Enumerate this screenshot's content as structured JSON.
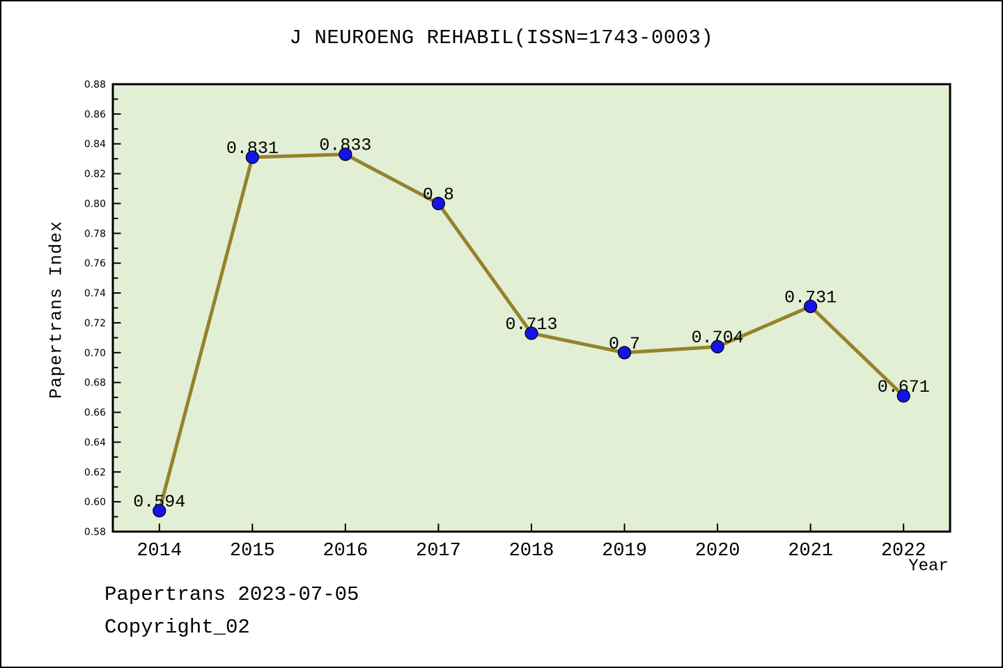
{
  "title": "J NEUROENG REHABIL(ISSN=1743-0003)",
  "footer": {
    "credit": "Papertrans 2023-07-05",
    "copyright": "Copyright_02"
  },
  "chart_data": {
    "type": "line",
    "title": "J NEUROENG REHABIL(ISSN=1743-0003)",
    "xlabel": "Year",
    "ylabel": "Papertrans Index",
    "x": [
      2014,
      2015,
      2016,
      2017,
      2018,
      2019,
      2020,
      2021,
      2022
    ],
    "values": [
      0.594,
      0.831,
      0.833,
      0.8,
      0.713,
      0.7,
      0.704,
      0.731,
      0.671
    ],
    "point_labels": [
      "0.594",
      "0.831",
      "0.833",
      "0.8",
      "0.713",
      "0.7",
      "0.704",
      "0.731",
      "0.671"
    ],
    "xlim": [
      2013.5,
      2022.5
    ],
    "ylim": [
      0.58,
      0.88
    ],
    "y_major_step": 0.02,
    "y_minor_step": 0.01,
    "x_tick_labels": [
      "2014",
      "2015",
      "2016",
      "2017",
      "2018",
      "2019",
      "2020",
      "2021",
      "2022"
    ],
    "grid": false,
    "legend": null,
    "colors": {
      "line": "#96822d",
      "marker": "#1414e6",
      "marker_edge": "#000000",
      "plot_background": "#e2efd5",
      "page_background": "#ffffff",
      "axis": "#000000",
      "text": "#000000"
    }
  }
}
